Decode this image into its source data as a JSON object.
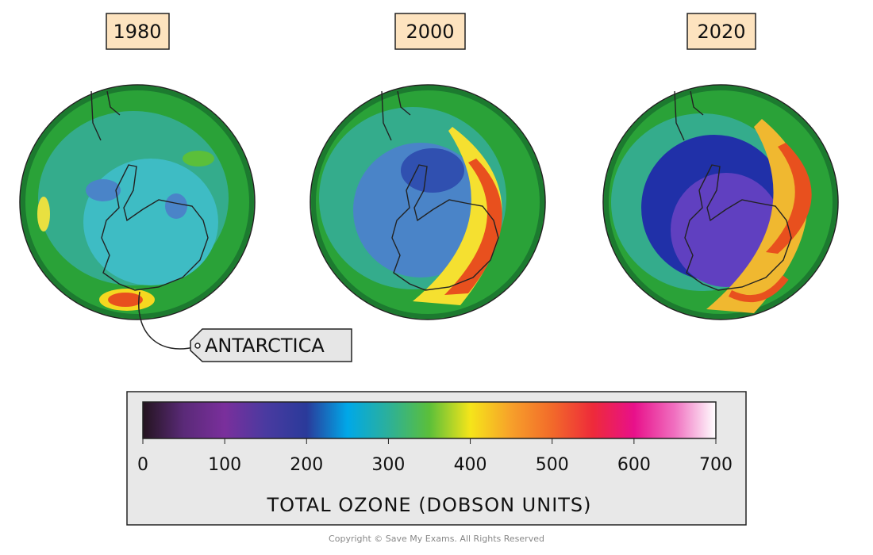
{
  "panels": [
    {
      "label": "1980"
    },
    {
      "label": "2000"
    },
    {
      "label": "2020"
    }
  ],
  "callout": "ANTARCTICA",
  "colorbar": {
    "range": [
      0,
      700
    ],
    "ticks": [
      0,
      100,
      200,
      300,
      400,
      500,
      600,
      700
    ],
    "label": "TOTAL OZONE (DOBSON UNITS)",
    "colors": [
      "#24141f",
      "#5a2a78",
      "#7a2f9c",
      "#4a3aa0",
      "#2a3a9a",
      "#00a8e8",
      "#2cb09a",
      "#5bbf3a",
      "#f5e51a",
      "#f7a02a",
      "#f26a2a",
      "#ee2a3a",
      "#e8108a",
      "#f070c0",
      "#ffffff"
    ]
  },
  "copyright": "Copyright © Save My Exams. All Rights Reserved"
}
